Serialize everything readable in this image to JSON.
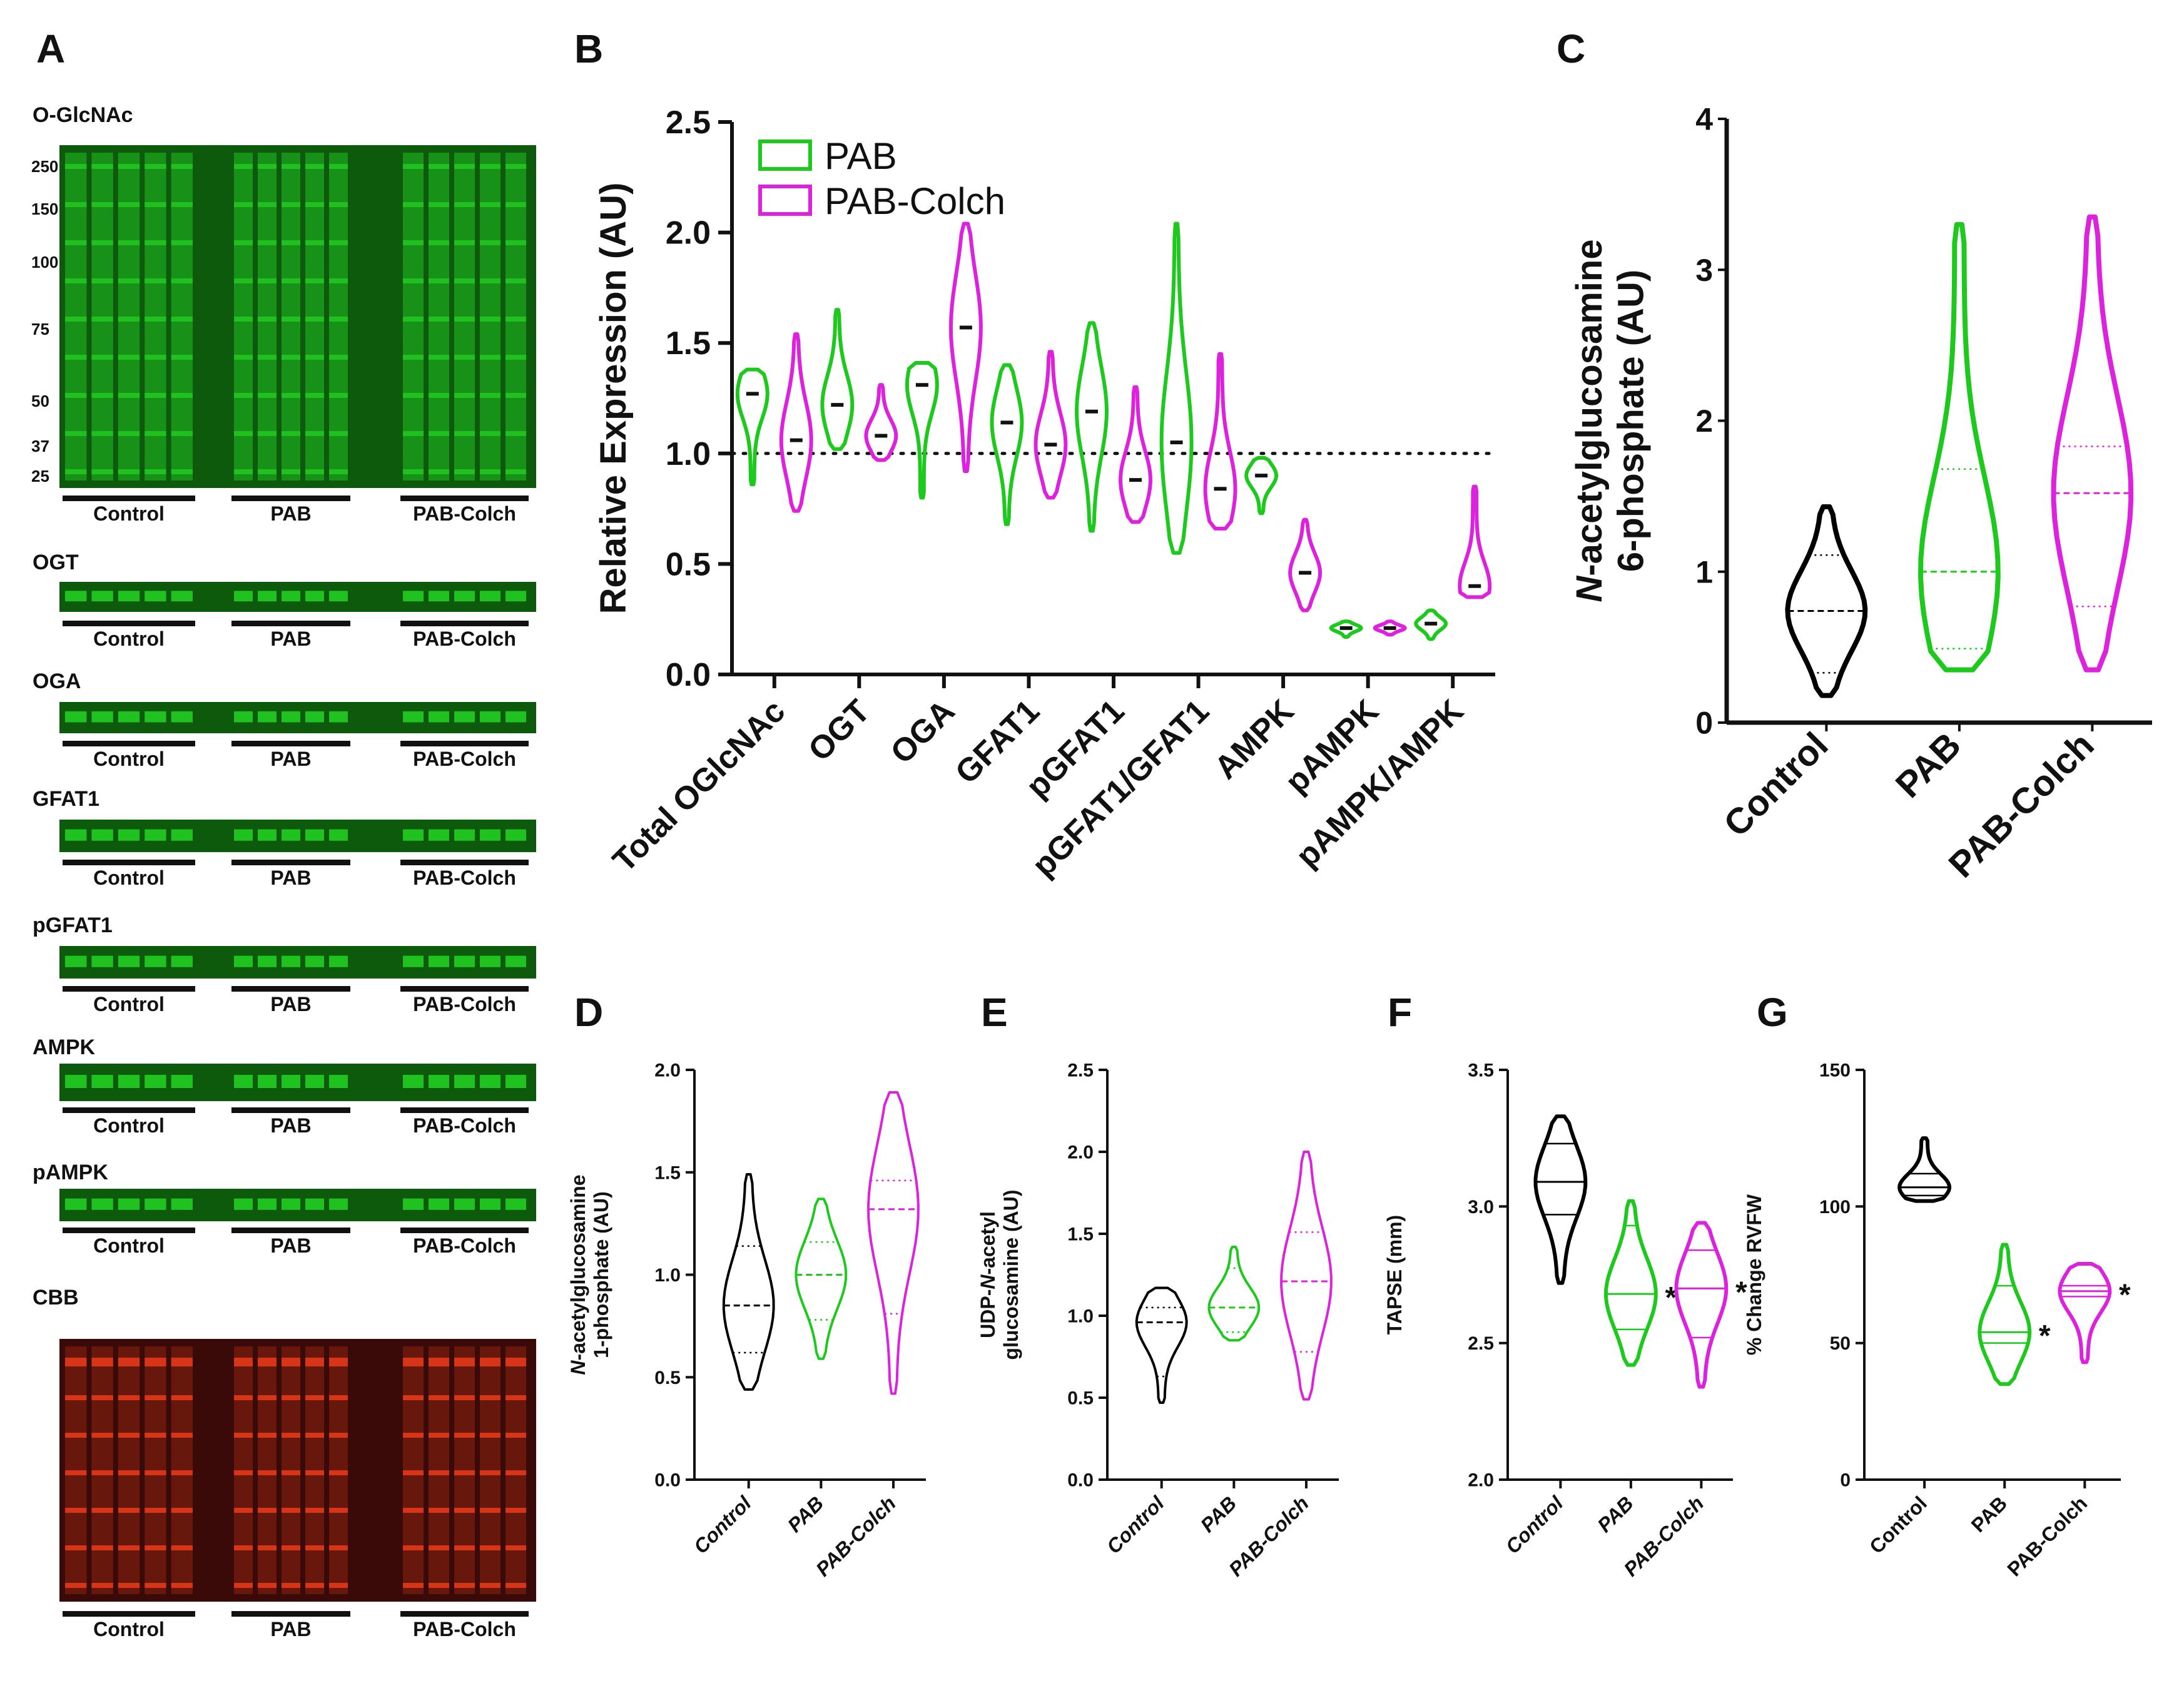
{
  "colors": {
    "control": "#000000",
    "pab": "#1ec91e",
    "pab_colch": "#dd22dd",
    "blot_green": "#22c822",
    "blot_red": "#e33818"
  },
  "panels": {
    "A": "A",
    "B": "B",
    "C": "C",
    "D": "D",
    "E": "E",
    "F": "F",
    "G": "G"
  },
  "blots": [
    {
      "label": "O-GlcNAc",
      "ladder": [
        "250",
        "150",
        "100",
        "75",
        "50",
        "37",
        "25"
      ],
      "groups": [
        "Control",
        "PAB",
        "PAB-Colch"
      ]
    },
    {
      "label": "OGT",
      "groups": [
        "Control",
        "PAB",
        "PAB-Colch"
      ]
    },
    {
      "label": "OGA",
      "groups": [
        "Control",
        "PAB",
        "PAB-Colch"
      ]
    },
    {
      "label": "GFAT1",
      "groups": [
        "Control",
        "PAB",
        "PAB-Colch"
      ]
    },
    {
      "label": "pGFAT1",
      "groups": [
        "Control",
        "PAB",
        "PAB-Colch"
      ]
    },
    {
      "label": "AMPK",
      "groups": [
        "Control",
        "PAB",
        "PAB-Colch"
      ]
    },
    {
      "label": "pAMPK",
      "groups": [
        "Control",
        "PAB",
        "PAB-Colch"
      ]
    },
    {
      "label": "CBB",
      "groups": [
        "Control",
        "PAB",
        "PAB-Colch"
      ]
    }
  ],
  "chart_data": [
    {
      "panel": "B",
      "type": "violin",
      "ylabel": "Relative Expression (AU)",
      "ylim": [
        0,
        2.5
      ],
      "yticks": [
        "0.0",
        "0.5",
        "1.0",
        "1.5",
        "2.0",
        "2.5"
      ],
      "categories": [
        "Total OGlcNAc",
        "OGT",
        "OGA",
        "GFAT1",
        "pGFAT1",
        "pGFAT1/GFAT1",
        "AMPK",
        "pAMPK",
        "pAMPK/AMPK"
      ],
      "reference_line": 1.0,
      "legend": "top-left",
      "series": [
        {
          "name": "PAB",
          "color_key": "pab",
          "violins": [
            {
              "min": 0.86,
              "max": 1.38,
              "median": 1.27
            },
            {
              "min": 1.02,
              "max": 1.65,
              "median": 1.22
            },
            {
              "min": 0.8,
              "max": 1.41,
              "median": 1.31
            },
            {
              "min": 0.68,
              "max": 1.4,
              "median": 1.14
            },
            {
              "min": 0.65,
              "max": 1.59,
              "median": 1.19
            },
            {
              "min": 0.55,
              "max": 2.04,
              "median": 1.05
            },
            {
              "min": 0.73,
              "max": 0.98,
              "median": 0.9
            },
            {
              "min": 0.17,
              "max": 0.24,
              "median": 0.21
            },
            {
              "min": 0.16,
              "max": 0.29,
              "median": 0.23
            }
          ]
        },
        {
          "name": "PAB-Colch",
          "color_key": "pab_colch",
          "violins": [
            {
              "min": 0.74,
              "max": 1.54,
              "median": 1.06
            },
            {
              "min": 0.97,
              "max": 1.31,
              "median": 1.08
            },
            {
              "min": 0.92,
              "max": 2.04,
              "median": 1.57
            },
            {
              "min": 0.8,
              "max": 1.46,
              "median": 1.04
            },
            {
              "min": 0.69,
              "max": 1.3,
              "median": 0.88
            },
            {
              "min": 0.66,
              "max": 1.45,
              "median": 0.84
            },
            {
              "min": 0.29,
              "max": 0.7,
              "median": 0.46
            },
            {
              "min": 0.18,
              "max": 0.24,
              "median": 0.21
            },
            {
              "min": 0.35,
              "max": 0.85,
              "median": 0.4
            }
          ]
        }
      ]
    },
    {
      "panel": "C",
      "type": "violin",
      "ylabel_lines": [
        "N-acetylglucosamine",
        "6-phosphate (AU)"
      ],
      "ylim": [
        0,
        4
      ],
      "yticks": [
        "0",
        "1",
        "2",
        "3",
        "4"
      ],
      "categories": [
        "Control",
        "PAB",
        "PAB-Colch"
      ],
      "violins": [
        {
          "color_key": "control",
          "min": 0.18,
          "max": 1.43,
          "median": 0.74,
          "q1": 0.33,
          "q3": 1.11
        },
        {
          "color_key": "pab",
          "min": 0.35,
          "max": 3.3,
          "median": 1.0,
          "q1": 0.49,
          "q3": 1.68
        },
        {
          "color_key": "pab_colch",
          "min": 0.35,
          "max": 3.35,
          "median": 1.52,
          "q1": 0.77,
          "q3": 1.83
        }
      ]
    },
    {
      "panel": "D",
      "type": "violin",
      "ylabel_lines": [
        "N-acetylglucosamine",
        "1-phosphate (AU)"
      ],
      "ylim": [
        0,
        2.0
      ],
      "yticks": [
        "0.0",
        "0.5",
        "1.0",
        "1.5",
        "2.0"
      ],
      "categories": [
        "Control",
        "PAB",
        "PAB-Colch"
      ],
      "violins": [
        {
          "color_key": "control",
          "min": 0.44,
          "max": 1.49,
          "median": 0.85,
          "q1": 0.62,
          "q3": 1.14
        },
        {
          "color_key": "pab",
          "min": 0.59,
          "max": 1.37,
          "median": 1.0,
          "q1": 0.78,
          "q3": 1.16
        },
        {
          "color_key": "pab_colch",
          "min": 0.42,
          "max": 1.89,
          "median": 1.32,
          "q1": 0.81,
          "q3": 1.46
        }
      ]
    },
    {
      "panel": "E",
      "type": "violin",
      "ylabel_lines": [
        "UDP-N-acetyl",
        "glucosamine (AU)"
      ],
      "ylim": [
        0,
        2.5
      ],
      "yticks": [
        "0.0",
        "0.5",
        "1.0",
        "1.5",
        "2.0",
        "2.5"
      ],
      "categories": [
        "Control",
        "PAB",
        "PAB-Colch"
      ],
      "violins": [
        {
          "color_key": "control",
          "min": 0.47,
          "max": 1.17,
          "median": 0.96,
          "q1": 0.63,
          "q3": 1.05
        },
        {
          "color_key": "pab",
          "min": 0.85,
          "max": 1.42,
          "median": 1.05,
          "q1": 0.9,
          "q3": 1.29
        },
        {
          "color_key": "pab_colch",
          "min": 0.49,
          "max": 2.0,
          "median": 1.21,
          "q1": 0.78,
          "q3": 1.51
        }
      ]
    },
    {
      "panel": "F",
      "type": "violin",
      "ylabel": "TAPSE (mm)",
      "ylim": [
        2.0,
        3.5
      ],
      "yticks": [
        "2.0",
        "2.5",
        "3.0",
        "3.5"
      ],
      "categories": [
        "Control",
        "PAB",
        "PAB-Colch"
      ],
      "violins": [
        {
          "color_key": "control",
          "min": 2.72,
          "max": 3.33,
          "median": 3.09,
          "q1": 2.97,
          "q3": 3.23
        },
        {
          "color_key": "pab",
          "min": 2.42,
          "max": 3.02,
          "median": 2.68,
          "q1": 2.55,
          "q3": 2.93,
          "sig": "*"
        },
        {
          "color_key": "pab_colch",
          "min": 2.34,
          "max": 2.94,
          "median": 2.7,
          "q1": 2.52,
          "q3": 2.84,
          "sig": "*"
        }
      ]
    },
    {
      "panel": "G",
      "type": "violin",
      "ylabel": "% Change RVFW",
      "ylim": [
        0,
        150
      ],
      "yticks": [
        "0",
        "50",
        "100",
        "150"
      ],
      "categories": [
        "Control",
        "PAB",
        "PAB-Colch"
      ],
      "violins": [
        {
          "color_key": "control",
          "min": 102,
          "max": 125,
          "median": 107,
          "q1": 104,
          "q3": 112
        },
        {
          "color_key": "pab",
          "min": 35,
          "max": 86,
          "median": 54,
          "q1": 50,
          "q3": 71,
          "sig": "*"
        },
        {
          "color_key": "pab_colch",
          "min": 43,
          "max": 79,
          "median": 69,
          "q1": 67,
          "q3": 71,
          "sig": "*"
        }
      ]
    }
  ]
}
